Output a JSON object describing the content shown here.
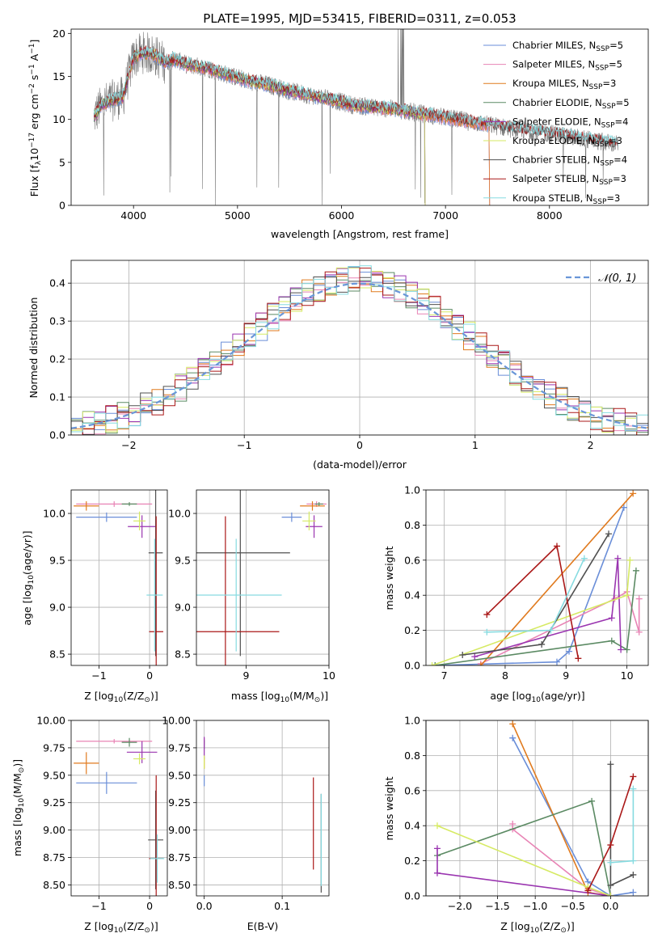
{
  "series_colors": {
    "chabrier_miles": "#6a8ed8",
    "salpeter_miles": "#e884b5",
    "kroupa_miles": "#e07a1e",
    "chabrier_elodie": "#5b8a63",
    "salpeter_elodie": "#9a35b0",
    "kroupa_elodie": "#d6ea63",
    "chabrier_stelib": "#505050",
    "salpeter_stelib": "#aa1818",
    "kroupa_stelib": "#86dbe0",
    "data": "#7a7a7a",
    "normal": "#6a96d8"
  },
  "chart_data": [
    {
      "id": "spectrum",
      "type": "line",
      "title": "PLATE=1995, MJD=53415, FIBERID=0311, z=0.053",
      "xlabel": "wavelength [Angstrom, rest frame]",
      "ylabel_parts": [
        "Flux [f",
        "λ",
        "10",
        "−17",
        " erg cm",
        "−2",
        " s",
        "−1",
        " A",
        "−1",
        "]"
      ],
      "xlim": [
        3400,
        8950
      ],
      "ylim": [
        0,
        20.5
      ],
      "xticks": [
        4000,
        5000,
        6000,
        7000,
        8000
      ],
      "yticks": [
        0,
        5,
        10,
        15,
        20
      ],
      "grid": false,
      "legend_position": "top-right",
      "legend": [
        {
          "key": "chabrier_miles",
          "label": "Chabrier MILES, N",
          "sub": "SSP",
          "tail": "=5"
        },
        {
          "key": "salpeter_miles",
          "label": "Salpeter MILES, N",
          "sub": "SSP",
          "tail": "=5"
        },
        {
          "key": "kroupa_miles",
          "label": "Kroupa MILES, N",
          "sub": "SSP",
          "tail": "=3"
        },
        {
          "key": "chabrier_elodie",
          "label": "Chabrier ELODIE, N",
          "sub": "SSP",
          "tail": "=5"
        },
        {
          "key": "salpeter_elodie",
          "label": "Salpeter ELODIE, N",
          "sub": "SSP",
          "tail": "=4"
        },
        {
          "key": "kroupa_elodie",
          "label": "Kroupa ELODIE, N",
          "sub": "SSP",
          "tail": "=3"
        },
        {
          "key": "chabrier_stelib",
          "label": "Chabrier STELIB, N",
          "sub": "SSP",
          "tail": "=4"
        },
        {
          "key": "salpeter_stelib",
          "label": "Salpeter STELIB, N",
          "sub": "SSP",
          "tail": "=3"
        },
        {
          "key": "kroupa_stelib",
          "label": "Kroupa STELIB, N",
          "sub": "SSP",
          "tail": "=3"
        }
      ],
      "continuum": [
        [
          3620,
          10.3
        ],
        [
          3700,
          11.8
        ],
        [
          3800,
          12.2
        ],
        [
          3900,
          12.6
        ],
        [
          4000,
          17.2
        ],
        [
          4100,
          17.8
        ],
        [
          4200,
          17.5
        ],
        [
          4300,
          16.6
        ],
        [
          4400,
          17.0
        ],
        [
          4500,
          16.4
        ],
        [
          4700,
          16.0
        ],
        [
          4900,
          15.2
        ],
        [
          5100,
          14.5
        ],
        [
          5300,
          14.0
        ],
        [
          5500,
          13.3
        ],
        [
          5700,
          12.8
        ],
        [
          5900,
          12.3
        ],
        [
          6100,
          11.7
        ],
        [
          6300,
          11.4
        ],
        [
          6500,
          11.2
        ],
        [
          6700,
          10.8
        ],
        [
          6900,
          10.4
        ],
        [
          7100,
          10.0
        ],
        [
          7300,
          9.6
        ],
        [
          7500,
          9.2
        ],
        [
          7700,
          8.8
        ],
        [
          7900,
          8.5
        ],
        [
          8100,
          8.2
        ],
        [
          8300,
          7.8
        ],
        [
          8500,
          7.4
        ],
        [
          8660,
          7.1
        ]
      ],
      "model_ranges": {
        "chabrier_miles": [
          3620,
          7420
        ],
        "salpeter_miles": [
          3620,
          7420
        ],
        "kroupa_miles": [
          3620,
          7420
        ],
        "chabrier_elodie": [
          3620,
          6800
        ],
        "salpeter_elodie": [
          3620,
          6800
        ],
        "kroupa_elodie": [
          3620,
          6800
        ],
        "chabrier_stelib": [
          3620,
          8660
        ],
        "salpeter_stelib": [
          3620,
          8660
        ],
        "kroupa_stelib": [
          3620,
          8660
        ]
      },
      "data_range": [
        3620,
        8660
      ]
    },
    {
      "id": "residuals",
      "type": "histogram",
      "xlabel": "(data-model)/error",
      "ylabel": "Normed distribution",
      "xlim": [
        -2.5,
        2.5
      ],
      "ylim": [
        0,
        0.46
      ],
      "xticks": [
        -2,
        -1,
        0,
        1,
        2
      ],
      "yticks": [
        0.0,
        0.1,
        0.2,
        0.3,
        0.4
      ],
      "grid": true,
      "legend_position": "top-right",
      "legend_label": "𝒩(0, 1)",
      "bin_width": 0.1
    },
    {
      "id": "age_vs_Z",
      "type": "errorbar",
      "xlabel_parts": [
        "Z [log",
        "10",
        "(Z/Z",
        "⊙",
        ")]"
      ],
      "ylabel_parts": [
        "age  [log",
        "10",
        "(age/yr)]"
      ],
      "xlim": [
        -1.55,
        0.35
      ],
      "ylim": [
        8.38,
        10.25
      ],
      "xticks": [
        -1,
        0
      ],
      "yticks": [
        8.5,
        9.0,
        9.5,
        10.0
      ],
      "grid": true,
      "points": [
        {
          "key": "chabrier_miles",
          "x": -0.85,
          "y": 9.96,
          "xerr": 0.6,
          "yerr": 0.05
        },
        {
          "key": "salpeter_miles",
          "x": -0.7,
          "y": 10.1,
          "xerr": 0.75,
          "yerr": 0.03
        },
        {
          "key": "kroupa_miles",
          "x": -1.25,
          "y": 10.08,
          "xerr": 0.25,
          "yerr": 0.05
        },
        {
          "key": "chabrier_elodie",
          "x": -0.4,
          "y": 10.1,
          "xerr": 0.15,
          "yerr": 0.02
        },
        {
          "key": "salpeter_elodie",
          "x": -0.15,
          "y": 9.86,
          "xerr": 0.28,
          "yerr": 0.12
        },
        {
          "key": "kroupa_elodie",
          "x": -0.2,
          "y": 9.92,
          "xerr": 0.12,
          "yerr": 0.1
        },
        {
          "key": "chabrier_stelib",
          "x": 0.12,
          "y": 9.58,
          "xerr": 0.14,
          "yerr": 1.1
        },
        {
          "key": "salpeter_stelib",
          "x": 0.13,
          "y": 8.74,
          "xerr": 0.14,
          "yerr": 1.23
        },
        {
          "key": "kroupa_stelib",
          "x": 0.1,
          "y": 9.13,
          "xerr": 0.16,
          "yerr": 0.6
        }
      ]
    },
    {
      "id": "age_vs_mass",
      "type": "errorbar",
      "xlabel_parts": [
        "mass [log",
        "10",
        "(M/M",
        "⊙",
        ")]"
      ],
      "xlim": [
        8.4,
        10.0
      ],
      "ylim": [
        8.38,
        10.25
      ],
      "xticks": [
        9,
        10
      ],
      "yticks": [
        8.5,
        9.0,
        9.5,
        10.0
      ],
      "grid": true,
      "points": [
        {
          "key": "chabrier_miles",
          "x": 9.55,
          "y": 9.96,
          "xerr": 0.12,
          "yerr": 0.05
        },
        {
          "key": "salpeter_miles",
          "x": 9.85,
          "y": 10.1,
          "xerr": 0.12,
          "yerr": 0.03
        },
        {
          "key": "kroupa_miles",
          "x": 9.8,
          "y": 10.08,
          "xerr": 0.15,
          "yerr": 0.05
        },
        {
          "key": "chabrier_elodie",
          "x": 9.88,
          "y": 10.1,
          "xerr": 0.05,
          "yerr": 0.02
        },
        {
          "key": "salpeter_elodie",
          "x": 9.82,
          "y": 9.86,
          "xerr": 0.1,
          "yerr": 0.12
        },
        {
          "key": "kroupa_elodie",
          "x": 9.76,
          "y": 9.92,
          "xerr": 0.08,
          "yerr": 0.1
        },
        {
          "key": "chabrier_stelib",
          "x": 8.93,
          "y": 9.58,
          "xerr": 0.6,
          "yerr": 1.1
        },
        {
          "key": "salpeter_stelib",
          "x": 8.75,
          "y": 8.74,
          "xerr": 0.65,
          "yerr": 1.23
        },
        {
          "key": "kroupa_stelib",
          "x": 8.88,
          "y": 9.13,
          "xerr": 0.55,
          "yerr": 0.6
        }
      ]
    },
    {
      "id": "weight_vs_age",
      "type": "line",
      "xlabel_parts": [
        "age  [log",
        "10",
        "(age/yr)]"
      ],
      "ylabel": "mass weight",
      "xlim": [
        6.7,
        10.35
      ],
      "ylim": [
        0,
        1.0
      ],
      "xticks": [
        7,
        8,
        9,
        10
      ],
      "yticks": [
        0.0,
        0.2,
        0.4,
        0.6,
        0.8,
        1.0
      ],
      "grid": true,
      "series": [
        {
          "key": "chabrier_miles",
          "values": [
            [
              6.85,
              0.0
            ],
            [
              8.85,
              0.02
            ],
            [
              9.05,
              0.08
            ],
            [
              9.95,
              0.9
            ]
          ]
        },
        {
          "key": "salpeter_miles",
          "values": [
            [
              7.6,
              0.01
            ],
            [
              9.8,
              0.38
            ],
            [
              10.0,
              0.42
            ],
            [
              10.2,
              0.19
            ],
            [
              10.2,
              0.38
            ]
          ]
        },
        {
          "key": "kroupa_miles",
          "values": [
            [
              7.6,
              0.0
            ],
            [
              10.1,
              0.98
            ]
          ]
        },
        {
          "key": "chabrier_elodie",
          "values": [
            [
              6.85,
              0.0
            ],
            [
              9.75,
              0.14
            ],
            [
              10.0,
              0.09
            ],
            [
              10.15,
              0.54
            ]
          ]
        },
        {
          "key": "salpeter_elodie",
          "values": [
            [
              7.5,
              0.05
            ],
            [
              9.75,
              0.27
            ],
            [
              9.85,
              0.61
            ],
            [
              9.9,
              0.09
            ]
          ]
        },
        {
          "key": "kroupa_elodie",
          "values": [
            [
              6.8,
              0.0
            ],
            [
              10.0,
              0.4
            ],
            [
              10.05,
              0.6
            ]
          ]
        },
        {
          "key": "chabrier_stelib",
          "values": [
            [
              7.3,
              0.06
            ],
            [
              8.6,
              0.12
            ],
            [
              9.7,
              0.75
            ]
          ]
        },
        {
          "key": "salpeter_stelib",
          "values": [
            [
              7.7,
              0.29
            ],
            [
              8.85,
              0.68
            ],
            [
              9.2,
              0.04
            ]
          ]
        },
        {
          "key": "kroupa_stelib",
          "values": [
            [
              7.7,
              0.19
            ],
            [
              8.75,
              0.2
            ],
            [
              9.3,
              0.61
            ]
          ]
        }
      ]
    },
    {
      "id": "mass_vs_Z",
      "type": "errorbar",
      "xlabel_parts": [
        "Z [log",
        "10",
        "(Z/Z",
        "⊙",
        ")]"
      ],
      "ylabel_parts": [
        "mass [log",
        "10",
        "(M/M",
        "⊙",
        ")]"
      ],
      "xlim": [
        -1.55,
        0.35
      ],
      "ylim": [
        8.4,
        10.0
      ],
      "xticks": [
        -1,
        0
      ],
      "yticks": [
        8.5,
        8.75,
        9.0,
        9.25,
        9.5,
        9.75,
        10.0
      ],
      "grid": true,
      "points": [
        {
          "key": "chabrier_miles",
          "x": -0.85,
          "y": 9.43,
          "xerr": 0.6,
          "yerr": 0.1
        },
        {
          "key": "salpeter_miles",
          "x": -0.7,
          "y": 9.81,
          "xerr": 0.75,
          "yerr": 0.02
        },
        {
          "key": "kroupa_miles",
          "x": -1.25,
          "y": 9.61,
          "xerr": 0.25,
          "yerr": 0.1
        },
        {
          "key": "chabrier_elodie",
          "x": -0.4,
          "y": 9.8,
          "xerr": 0.15,
          "yerr": 0.04
        },
        {
          "key": "salpeter_elodie",
          "x": -0.15,
          "y": 9.71,
          "xerr": 0.3,
          "yerr": 0.1
        },
        {
          "key": "kroupa_elodie",
          "x": -0.2,
          "y": 9.65,
          "xerr": 0.12,
          "yerr": 0.05
        },
        {
          "key": "chabrier_stelib",
          "x": 0.12,
          "y": 8.91,
          "xerr": 0.15,
          "yerr": 0.45
        },
        {
          "key": "salpeter_stelib",
          "x": 0.13,
          "y": 8.74,
          "xerr": 0.14,
          "yerr": 0.76
        },
        {
          "key": "kroupa_stelib",
          "x": 0.15,
          "y": 8.74,
          "xerr": 0.14,
          "yerr": 0.22
        }
      ]
    },
    {
      "id": "mass_vs_ebv",
      "type": "errorbar",
      "xlabel": "E(B-V)",
      "xlim": [
        -0.01,
        0.16
      ],
      "ylim": [
        8.4,
        10.0
      ],
      "xticks": [
        0.0,
        0.1
      ],
      "yticks": [
        8.5,
        8.75,
        9.0,
        9.25,
        9.5,
        9.75,
        10.0
      ],
      "grid": true,
      "points": [
        {
          "key": "chabrier_miles",
          "x": 0.0,
          "y": 9.45,
          "xerr": 0.0,
          "yerr": 0.05
        },
        {
          "key": "salpeter_miles",
          "x": 0.0,
          "y": 9.81,
          "xerr": 0.0,
          "yerr": 0.03
        },
        {
          "key": "kroupa_miles",
          "x": 0.0,
          "y": 9.61,
          "xerr": 0.0,
          "yerr": 0.05
        },
        {
          "key": "chabrier_elodie",
          "x": 0.0,
          "y": 9.78,
          "xerr": 0.0,
          "yerr": 0.04
        },
        {
          "key": "salpeter_elodie",
          "x": 0.0,
          "y": 9.75,
          "xerr": 0.0,
          "yerr": 0.1
        },
        {
          "key": "kroupa_elodie",
          "x": 0.0,
          "y": 9.62,
          "xerr": 0.0,
          "yerr": 0.06
        },
        {
          "key": "chabrier_stelib",
          "x": 0.15,
          "y": 8.88,
          "xerr": 0.0,
          "yerr": 0.45
        },
        {
          "key": "salpeter_stelib",
          "x": 0.14,
          "y": 9.06,
          "xerr": 0.0,
          "yerr": 0.42
        },
        {
          "key": "kroupa_stelib",
          "x": 0.15,
          "y": 8.91,
          "xerr": 0.0,
          "yerr": 0.42
        }
      ]
    },
    {
      "id": "weight_vs_Z",
      "type": "line",
      "xlabel_parts": [
        "Z [log",
        "10",
        "(Z/Z",
        "⊙",
        ")]"
      ],
      "ylabel": "mass weight",
      "xlim": [
        -2.45,
        0.5
      ],
      "ylim": [
        0,
        1.0
      ],
      "xticks": [
        -2.0,
        -1.5,
        -1.0,
        -0.5,
        0.0
      ],
      "grid": true,
      "series": [
        {
          "key": "chabrier_miles",
          "values": [
            [
              -1.3,
              0.9
            ],
            [
              -0.3,
              0.08
            ],
            [
              0.0,
              0.0
            ],
            [
              0.3,
              0.02
            ]
          ]
        },
        {
          "key": "salpeter_miles",
          "values": [
            [
              -1.3,
              0.41
            ],
            [
              -1.3,
              0.38
            ],
            [
              -0.3,
              0.04
            ],
            [
              0.0,
              0.0
            ]
          ]
        },
        {
          "key": "kroupa_miles",
          "values": [
            [
              -1.3,
              0.98
            ],
            [
              -0.3,
              0.02
            ],
            [
              0.0,
              0.0
            ]
          ]
        },
        {
          "key": "chabrier_elodie",
          "values": [
            [
              -2.3,
              0.23
            ],
            [
              -0.25,
              0.54
            ],
            [
              0.0,
              0.0
            ]
          ]
        },
        {
          "key": "salpeter_elodie",
          "values": [
            [
              -2.3,
              0.27
            ],
            [
              -2.3,
              0.13
            ],
            [
              0.0,
              0.0
            ]
          ]
        },
        {
          "key": "kroupa_elodie",
          "values": [
            [
              -2.3,
              0.4
            ],
            [
              -0.3,
              0.05
            ],
            [
              0.0,
              0.0
            ]
          ]
        },
        {
          "key": "chabrier_stelib",
          "values": [
            [
              0.0,
              0.75
            ],
            [
              0.0,
              0.06
            ],
            [
              0.3,
              0.12
            ]
          ]
        },
        {
          "key": "salpeter_stelib",
          "values": [
            [
              -0.3,
              0.03
            ],
            [
              0.0,
              0.29
            ],
            [
              0.3,
              0.68
            ]
          ]
        },
        {
          "key": "kroupa_stelib",
          "values": [
            [
              0.0,
              0.19
            ],
            [
              0.3,
              0.2
            ],
            [
              0.3,
              0.61
            ]
          ]
        }
      ]
    }
  ]
}
